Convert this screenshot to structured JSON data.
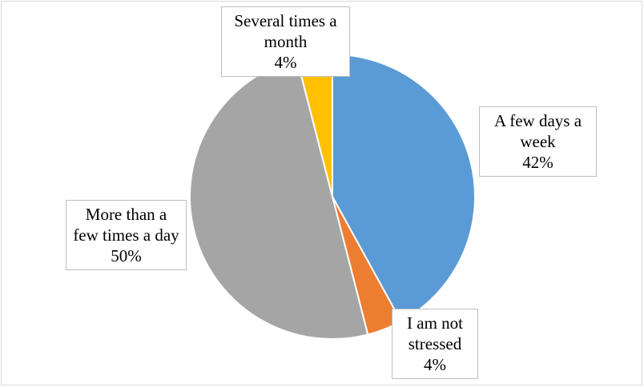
{
  "chart_data": {
    "type": "pie",
    "categories": [
      "A few days a week",
      "I am not stressed",
      "More than a few times a day",
      "Several times a month"
    ],
    "values": [
      42,
      4,
      50,
      4
    ],
    "value_labels": [
      "42%",
      "4%",
      "50%",
      "4%"
    ],
    "colors": [
      "#5b9bd5",
      "#ed7d31",
      "#a5a5a5",
      "#ffc000"
    ]
  }
}
